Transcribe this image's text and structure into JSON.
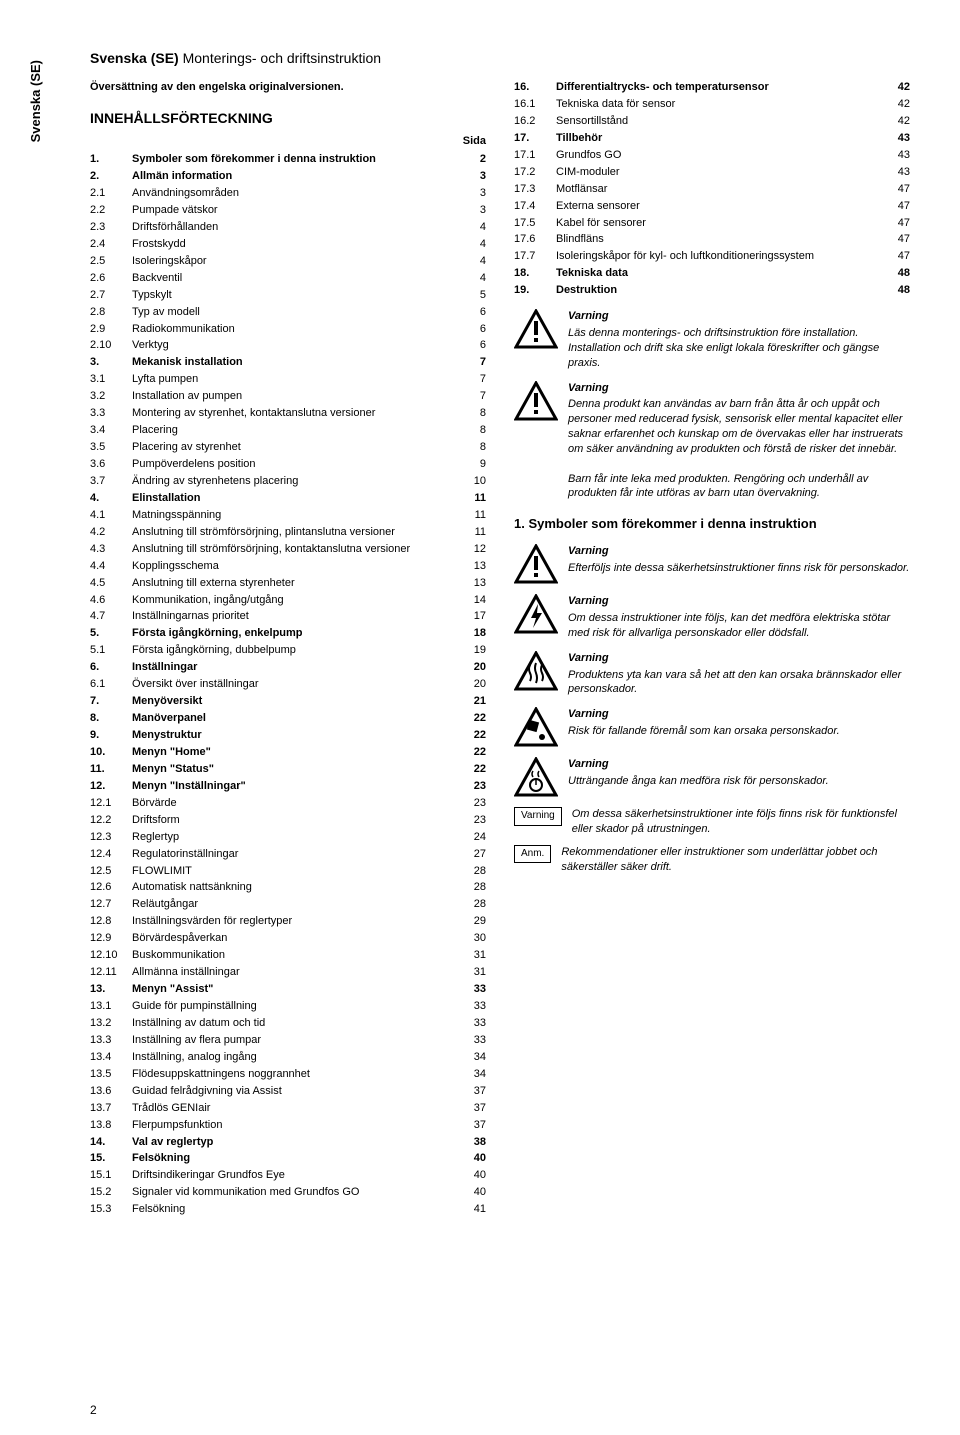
{
  "side_tab": "Svenska (SE)",
  "header": {
    "lang": "Svenska (SE)",
    "title": "Monterings- och driftsinstruktion"
  },
  "translation_note": "Översättning av den engelska originalversionen.",
  "toc_heading": "INNEHÅLLSFÖRTECKNING",
  "sida_label": "Sida",
  "toc_left": [
    {
      "n": "1.",
      "t": "Symboler som förekommer i denna instruktion",
      "p": "2",
      "b": true
    },
    {
      "n": "2.",
      "t": "Allmän information",
      "p": "3",
      "b": true
    },
    {
      "n": "2.1",
      "t": "Användningsområden",
      "p": "3"
    },
    {
      "n": "2.2",
      "t": "Pumpade vätskor",
      "p": "3"
    },
    {
      "n": "2.3",
      "t": "Driftsförhållanden",
      "p": "4"
    },
    {
      "n": "2.4",
      "t": "Frostskydd",
      "p": "4"
    },
    {
      "n": "2.5",
      "t": "Isoleringskåpor",
      "p": "4"
    },
    {
      "n": "2.6",
      "t": "Backventil",
      "p": "4"
    },
    {
      "n": "2.7",
      "t": "Typskylt",
      "p": "5"
    },
    {
      "n": "2.8",
      "t": "Typ av modell",
      "p": "6"
    },
    {
      "n": "2.9",
      "t": "Radiokommunikation",
      "p": "6"
    },
    {
      "n": "2.10",
      "t": "Verktyg",
      "p": "6"
    },
    {
      "n": "3.",
      "t": "Mekanisk installation",
      "p": "7",
      "b": true
    },
    {
      "n": "3.1",
      "t": "Lyfta pumpen",
      "p": "7"
    },
    {
      "n": "3.2",
      "t": "Installation av pumpen",
      "p": "7"
    },
    {
      "n": "3.3",
      "t": "Montering av styrenhet, kontaktanslutna versioner",
      "p": "8"
    },
    {
      "n": "3.4",
      "t": "Placering",
      "p": "8"
    },
    {
      "n": "3.5",
      "t": "Placering av styrenhet",
      "p": "8"
    },
    {
      "n": "3.6",
      "t": "Pumpöverdelens position",
      "p": "9"
    },
    {
      "n": "3.7",
      "t": "Ändring av styrenhetens placering",
      "p": "10"
    },
    {
      "n": "4.",
      "t": "Elinstallation",
      "p": "11",
      "b": true
    },
    {
      "n": "4.1",
      "t": "Matningsspänning",
      "p": "11"
    },
    {
      "n": "4.2",
      "t": "Anslutning till strömförsörjning, plintanslutna versioner",
      "p": "11"
    },
    {
      "n": "4.3",
      "t": "Anslutning till strömförsörjning, kontaktanslutna versioner",
      "p": "12"
    },
    {
      "n": "4.4",
      "t": "Kopplingsschema",
      "p": "13"
    },
    {
      "n": "4.5",
      "t": "Anslutning till externa styrenheter",
      "p": "13"
    },
    {
      "n": "4.6",
      "t": "Kommunikation, ingång/utgång",
      "p": "14"
    },
    {
      "n": "4.7",
      "t": "Inställningarnas prioritet",
      "p": "17"
    },
    {
      "n": "5.",
      "t": "Första igångkörning, enkelpump",
      "p": "18",
      "b": true
    },
    {
      "n": "5.1",
      "t": "Första igångkörning, dubbelpump",
      "p": "19"
    },
    {
      "n": "6.",
      "t": "Inställningar",
      "p": "20",
      "b": true
    },
    {
      "n": "6.1",
      "t": "Översikt över inställningar",
      "p": "20"
    },
    {
      "n": "7.",
      "t": "Menyöversikt",
      "p": "21",
      "b": true
    },
    {
      "n": "8.",
      "t": "Manöverpanel",
      "p": "22",
      "b": true
    },
    {
      "n": "9.",
      "t": "Menystruktur",
      "p": "22",
      "b": true
    },
    {
      "n": "10.",
      "t": "Menyn \"Home\"",
      "p": "22",
      "b": true
    },
    {
      "n": "11.",
      "t": "Menyn \"Status\"",
      "p": "22",
      "b": true
    },
    {
      "n": "12.",
      "t": "Menyn \"Inställningar\"",
      "p": "23",
      "b": true
    },
    {
      "n": "12.1",
      "t": "Börvärde",
      "p": "23"
    },
    {
      "n": "12.2",
      "t": "Driftsform",
      "p": "23"
    },
    {
      "n": "12.3",
      "t": "Reglertyp",
      "p": "24"
    },
    {
      "n": "12.4",
      "t": "Regulatorinställningar",
      "p": "27"
    },
    {
      "n": "12.5",
      "t": "FLOWLIMIT",
      "p": "28"
    },
    {
      "n": "12.6",
      "t": "Automatisk nattsänkning",
      "p": "28"
    },
    {
      "n": "12.7",
      "t": "Reläutgångar",
      "p": "28"
    },
    {
      "n": "12.8",
      "t": "Inställningsvärden för reglertyper",
      "p": "29"
    },
    {
      "n": "12.9",
      "t": "Börvärdespåverkan",
      "p": "30"
    },
    {
      "n": "12.10",
      "t": "Buskommunikation",
      "p": "31"
    },
    {
      "n": "12.11",
      "t": "Allmänna inställningar",
      "p": "31"
    },
    {
      "n": "13.",
      "t": "Menyn \"Assist\"",
      "p": "33",
      "b": true
    },
    {
      "n": "13.1",
      "t": "Guide för pumpinställning",
      "p": "33"
    },
    {
      "n": "13.2",
      "t": "Inställning av datum och tid",
      "p": "33"
    },
    {
      "n": "13.3",
      "t": "Inställning av flera pumpar",
      "p": "33"
    },
    {
      "n": "13.4",
      "t": "Inställning, analog ingång",
      "p": "34"
    },
    {
      "n": "13.5",
      "t": "Flödesuppskattningens noggrannhet",
      "p": "34"
    },
    {
      "n": "13.6",
      "t": "Guidad felrådgivning via Assist",
      "p": "37"
    },
    {
      "n": "13.7",
      "t": "Trådlös GENIair",
      "p": "37"
    },
    {
      "n": "13.8",
      "t": "Flerpumpsfunktion",
      "p": "37"
    },
    {
      "n": "14.",
      "t": "Val av reglertyp",
      "p": "38",
      "b": true
    },
    {
      "n": "15.",
      "t": "Felsökning",
      "p": "40",
      "b": true
    },
    {
      "n": "15.1",
      "t": "Driftsindikeringar Grundfos Eye",
      "p": "40"
    },
    {
      "n": "15.2",
      "t": "Signaler vid kommunikation med Grundfos GO",
      "p": "40"
    },
    {
      "n": "15.3",
      "t": "Felsökning",
      "p": "41"
    }
  ],
  "toc_right": [
    {
      "n": "16.",
      "t": "Differentialtrycks- och temperatursensor",
      "p": "42",
      "b": true
    },
    {
      "n": "16.1",
      "t": "Tekniska data för sensor",
      "p": "42"
    },
    {
      "n": "16.2",
      "t": "Sensortillstånd",
      "p": "42"
    },
    {
      "n": "17.",
      "t": "Tillbehör",
      "p": "43",
      "b": true
    },
    {
      "n": "17.1",
      "t": "Grundfos GO",
      "p": "43"
    },
    {
      "n": "17.2",
      "t": "CIM-moduler",
      "p": "43"
    },
    {
      "n": "17.3",
      "t": "Motflänsar",
      "p": "47"
    },
    {
      "n": "17.4",
      "t": "Externa sensorer",
      "p": "47"
    },
    {
      "n": "17.5",
      "t": "Kabel för sensorer",
      "p": "47"
    },
    {
      "n": "17.6",
      "t": "Blindfläns",
      "p": "47"
    },
    {
      "n": "17.7",
      "t": "Isoleringskåpor för kyl- och luftkonditioneringssystem",
      "p": "47"
    },
    {
      "n": "18.",
      "t": "Tekniska data",
      "p": "48",
      "b": true
    },
    {
      "n": "19.",
      "t": "Destruktion",
      "p": "48",
      "b": true
    }
  ],
  "warnings": [
    {
      "icon": "exclaim",
      "head": "Varning",
      "text": "Läs denna monterings- och driftsinstruktion före installation. Installation och drift ska ske enligt lokala föreskrifter och gängse praxis."
    },
    {
      "icon": "exclaim",
      "head": "Varning",
      "text": "Denna produkt kan användas av barn från åtta år och uppåt och personer med reducerad fysisk, sensorisk eller mental kapacitet eller saknar erfarenhet och kunskap om de övervakas eller har instruerats om säker användning av produkten och förstå de risker det innebär.",
      "text2": "Barn får inte leka med produkten. Rengöring och underhåll av produkten får inte utföras av barn utan övervakning."
    }
  ],
  "section1_heading": "1. Symboler som förekommer i denna instruktion",
  "symbol_warnings": [
    {
      "icon": "exclaim",
      "head": "Varning",
      "text": "Efterföljs inte dessa säkerhetsinstruktioner finns risk för personskador."
    },
    {
      "icon": "bolt",
      "head": "Varning",
      "text": "Om dessa instruktioner inte följs, kan det medföra elektriska stötar med risk för allvarliga personskador eller dödsfall."
    },
    {
      "icon": "heat",
      "head": "Varning",
      "text": "Produktens yta kan vara så het att den kan orsaka brännskador eller personskador."
    },
    {
      "icon": "fall",
      "head": "Varning",
      "text": "Risk för fallande föremål som kan orsaka personskador."
    },
    {
      "icon": "steam",
      "head": "Varning",
      "text": "Utträngande ånga kan medföra risk för personskador."
    }
  ],
  "badges": [
    {
      "label": "Varning",
      "text": "Om dessa säkerhetsinstruktioner inte följs finns risk för funktionsfel eller skador på utrustningen."
    },
    {
      "label": "Anm.",
      "text": "Rekommendationer eller instruktioner som underlättar jobbet och säkerställer säker drift."
    }
  ],
  "page_number": "2"
}
